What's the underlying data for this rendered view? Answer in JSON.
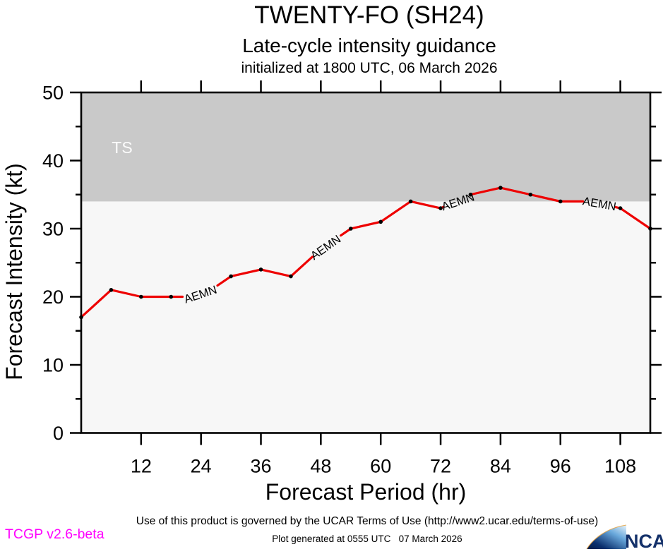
{
  "header": {
    "title": "TWENTY-FO (SH24)",
    "subtitle": "Late-cycle intensity guidance",
    "init_line": "initialized at 1800 UTC, 06 March 2026"
  },
  "chart_data": {
    "type": "line",
    "title": "TWENTY-FO (SH24)",
    "xlabel": "Forecast Period (hr)",
    "ylabel": "Forecast Intensity (kt)",
    "xlim": [
      0,
      114
    ],
    "ylim": [
      0,
      50
    ],
    "x_ticks": [
      12,
      24,
      36,
      48,
      60,
      72,
      84,
      96,
      108
    ],
    "y_ticks_major": [
      0,
      10,
      20,
      30,
      40,
      50
    ],
    "y_ticks_minor": [
      5,
      15,
      25,
      35,
      45
    ],
    "grid": false,
    "legend": false,
    "plot_bg": "#f7f7f7",
    "threshold_band": {
      "label": "TS",
      "from": 34,
      "to": 50,
      "color": "#c9c9c9",
      "label_x": 8.2,
      "label_y": 41.9,
      "label_color": "#fbfbfb"
    },
    "series": [
      {
        "name": "AEMN",
        "color": "#ee0000",
        "marker_color": "#000000",
        "x": [
          0,
          6,
          12,
          18,
          24,
          30,
          36,
          42,
          48,
          54,
          60,
          66,
          72,
          78,
          84,
          90,
          96,
          102,
          108,
          114
        ],
        "values": [
          17,
          21,
          20,
          20,
          20,
          23,
          24,
          23,
          27,
          30,
          31,
          34,
          33,
          35,
          36,
          35,
          34,
          34,
          33,
          30
        ],
        "hidden_marker_x": [
          24,
          48,
          102
        ],
        "label_gaps_x": [
          [
            20.3,
            27.3
          ],
          [
            46.3,
            52.0
          ],
          [
            72.6,
            77.9
          ],
          [
            100.5,
            107.0
          ]
        ],
        "labels": [
          {
            "text": "AEMN",
            "x": 23.9,
            "y": 20.3,
            "angle": -18
          },
          {
            "text": "AEMN",
            "x": 49.0,
            "y": 27.2,
            "angle": -35
          },
          {
            "text": "AEMN",
            "x": 75.5,
            "y": 33.9,
            "angle": -18
          },
          {
            "text": "AEMN",
            "x": 103.8,
            "y": 33.6,
            "angle": 10
          }
        ]
      }
    ]
  },
  "footer": {
    "terms": "Use of this product is governed by the UCAR Terms of Use (http://www2.ucar.edu/terms-of-use)",
    "generated": "Plot generated at 0555 UTC   07 March 2026",
    "version": "TCGP v2.6-beta",
    "version_color": "#ff00ff",
    "logo_text": "NCAR"
  }
}
